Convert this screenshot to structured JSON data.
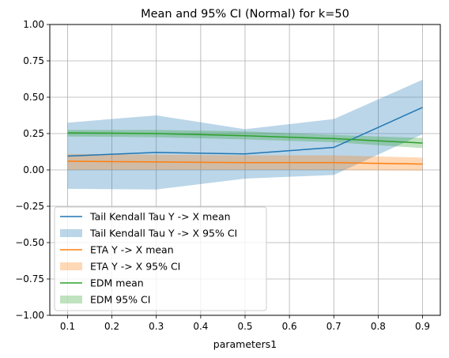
{
  "chart_data": {
    "type": "line",
    "title": "Mean and 95% CI (Normal) for k=50",
    "xlabel": "parameters1",
    "ylabel": "",
    "x": [
      0.1,
      0.3,
      0.5,
      0.7,
      0.9
    ],
    "xlim": [
      0.06,
      0.94
    ],
    "ylim": [
      -1.0,
      1.0
    ],
    "xticks": [
      0.1,
      0.2,
      0.3,
      0.4,
      0.5,
      0.6,
      0.7,
      0.8,
      0.9
    ],
    "xtick_labels": [
      "0.1",
      "0.2",
      "0.3",
      "0.4",
      "0.5",
      "0.6",
      "0.7",
      "0.8",
      "0.9"
    ],
    "yticks": [
      -1.0,
      -0.75,
      -0.5,
      -0.25,
      0.0,
      0.25,
      0.5,
      0.75,
      1.0
    ],
    "ytick_labels": [
      "−1.00",
      "−0.75",
      "−0.50",
      "−0.25",
      "0.00",
      "0.25",
      "0.50",
      "0.75",
      "1.00"
    ],
    "grid": true,
    "legend_position": "lower-left",
    "series": [
      {
        "key": "tail",
        "name": "Tail Kendall Tau Y -> X mean",
        "ci_name": "Tail Kendall Tau Y -> X 95% CI",
        "color": "#1f77b4",
        "mean": [
          0.095,
          0.12,
          0.11,
          0.155,
          0.43
        ],
        "lower": [
          -0.13,
          -0.135,
          -0.06,
          -0.035,
          0.245
        ],
        "upper": [
          0.325,
          0.375,
          0.28,
          0.35,
          0.62
        ]
      },
      {
        "key": "eta",
        "name": "ETA Y -> X mean",
        "ci_name": "ETA Y -> X 95% CI",
        "color": "#ff7f0e",
        "mean": [
          0.06,
          0.055,
          0.05,
          0.05,
          0.04
        ],
        "lower": [
          0.0,
          0.0,
          0.0,
          0.0,
          -0.005
        ],
        "upper": [
          0.11,
          0.105,
          0.1,
          0.1,
          0.085
        ]
      },
      {
        "key": "edm",
        "name": "EDM mean",
        "ci_name": "EDM 95% CI",
        "color": "#2ca02c",
        "mean": [
          0.255,
          0.25,
          0.235,
          0.215,
          0.185
        ],
        "lower": [
          0.23,
          0.225,
          0.21,
          0.19,
          0.15
        ],
        "upper": [
          0.275,
          0.275,
          0.265,
          0.24,
          0.22
        ]
      }
    ]
  }
}
